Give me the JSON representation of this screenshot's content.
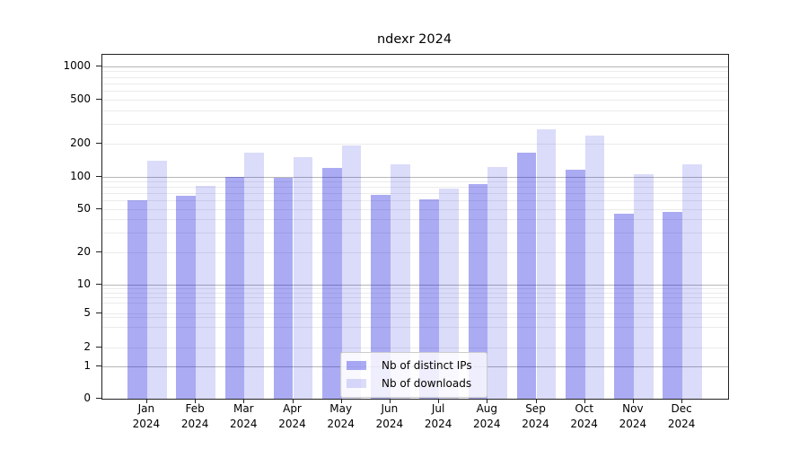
{
  "title": "ndexr 2024",
  "y_axis": {
    "tick_labels": [
      "0",
      "1",
      "2",
      "5",
      "10",
      "20",
      "50",
      "100",
      "200",
      "500",
      "1000"
    ]
  },
  "x_axis": {
    "months": [
      "Jan",
      "Feb",
      "Mar",
      "Apr",
      "May",
      "Jun",
      "Jul",
      "Aug",
      "Sep",
      "Oct",
      "Nov",
      "Dec"
    ],
    "year": "2024"
  },
  "legend": {
    "items": [
      {
        "label": "Nb of distinct IPs",
        "color": "rgba(15,15,220,0.35)"
      },
      {
        "label": "Nb of downloads",
        "color": "rgba(15,15,220,0.15)"
      }
    ]
  },
  "chart_data": {
    "type": "bar",
    "title": "ndexr 2024",
    "categories": [
      "Jan 2024",
      "Feb 2024",
      "Mar 2024",
      "Apr 2024",
      "May 2024",
      "Jun 2024",
      "Jul 2024",
      "Aug 2024",
      "Sep 2024",
      "Oct 2024",
      "Nov 2024",
      "Dec 2024"
    ],
    "series": [
      {
        "name": "Nb of distinct IPs",
        "color": "rgba(15,15,220,0.35)",
        "values": [
          60,
          66,
          100,
          98,
          120,
          68,
          61,
          85,
          165,
          116,
          45,
          47
        ]
      },
      {
        "name": "Nb of downloads",
        "color": "rgba(15,15,220,0.15)",
        "values": [
          140,
          82,
          165,
          150,
          190,
          130,
          77,
          122,
          270,
          235,
          105,
          130
        ]
      }
    ],
    "yscale": "symlog",
    "y_ticks": [
      0,
      1,
      2,
      5,
      10,
      20,
      50,
      100,
      200,
      500,
      1000
    ],
    "ylim": [
      0,
      1300
    ],
    "xlabel": "",
    "ylabel": "",
    "grid": true,
    "legend_position": "lower center"
  }
}
